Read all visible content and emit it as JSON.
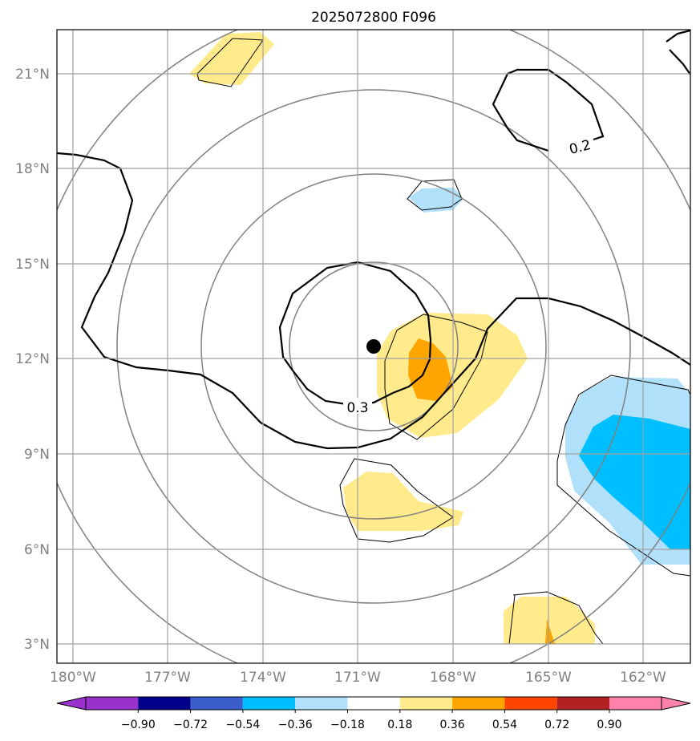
{
  "title": "2025072800 F096",
  "map": {
    "lon_ticks": [
      "180°W",
      "177°W",
      "174°W",
      "171°W",
      "168°W",
      "165°W",
      "162°W"
    ],
    "lat_ticks": [
      "21°N",
      "18°N",
      "15°N",
      "12°N",
      "9°N",
      "6°N",
      "3°N"
    ],
    "contour_labels": [
      "0.2",
      "0.3"
    ],
    "storm_center_marker": "filled-black-circle",
    "range_rings": "concentric-gray-circles"
  },
  "colorbar": {
    "ticks": [
      "−0.90",
      "−0.72",
      "−0.54",
      "−0.36",
      "−0.18",
      "0.18",
      "0.36",
      "0.54",
      "0.72",
      "0.90"
    ],
    "colors": [
      "#9932cc",
      "#00008b",
      "#3a5fcd",
      "#00bfff",
      "#b0e0fa",
      "#ffffff",
      "#ffeb8c",
      "#ffa500",
      "#ff4500",
      "#b22222",
      "#ff82ab"
    ]
  }
}
